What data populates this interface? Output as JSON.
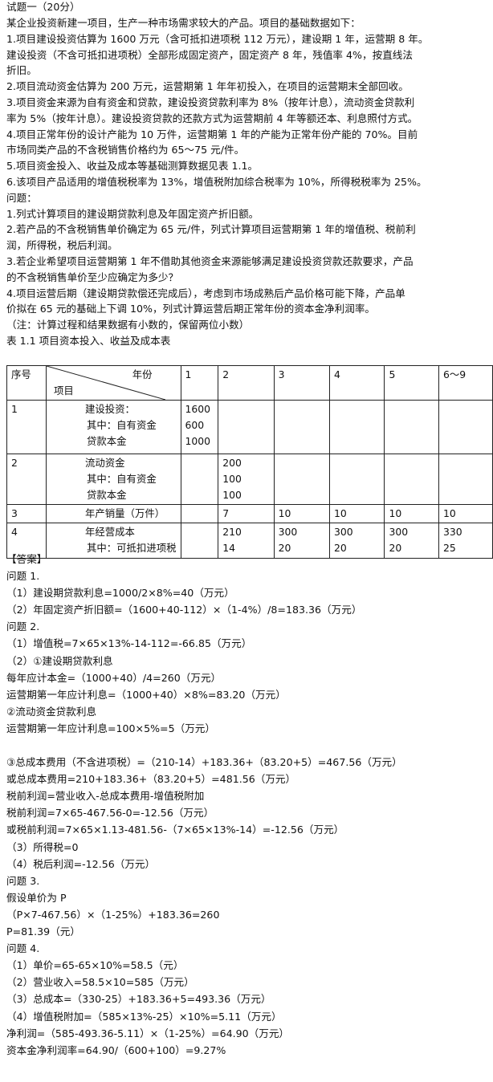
{
  "question": {
    "title": "试题一（20分）",
    "lines": [
      "某企业投资新建一项目，生产一种市场需求较大的产品。项目的基础数据如下：",
      "1.项目建设投资估算为 1600 万元（含可抵扣进项税 112 万元），建设期 1 年，运营期 8 年。",
      "建设投资（不含可抵扣进项税）全部形成固定资产，固定资产 8 年，残值率 4%，按直线法",
      "折旧。",
      "2.项目流动资金估算为 200 万元，运营期第 1 年年初投入，在项目的运营期末全部回收。",
      "3.项目资金来源为自有资金和贷款，建设投资贷款利率为 8%（按年计息），流动资金贷款利",
      "率为 5%（按年计息）。建设投资贷款的还款方式为运营期前 4 年等额还本、利息照付方式。",
      "4.项目正常年份的设计产能为 10 万件，运营期第 1 年的产能为正常年份产能的 70%。目前",
      "市场同类产品的不含税销售价格约为 65～75 元/件。",
      "5.项目资金投入、收益及成本等基础测算数据见表 1.1。",
      "6.该项目产品适用的增值税税率为 13%，增值税附加综合税率为 10%，所得税税率为 25%。",
      "问题：",
      "1.列式计算项目的建设期贷款利息及年固定资产折旧额。",
      "2.若产品的不含税销售单价确定为 65 元/件，列式计算项目运营期第 1 年的增值税、税前利",
      "润，所得税，税后利润。",
      "3.若企业希望项目运营期第 1 年不借助其他资金来源能够满足建设投资贷款还款要求，产品",
      "的不含税销售单价至少应确定为多少？",
      "4.项目运营后期（建设期贷款偿还完成后），考虑到市场成熟后产品价格可能下降，产品单",
      "价拟在 65 元的基础上下调 10%，列式计算运营后期正常年份的资本金净利润率。",
      "（注：计算过程和结果数据有小数的，保留两位小数）",
      "表 1.1  项目资本投入、收益及成本表"
    ]
  },
  "table": {
    "header": {
      "number": "序号",
      "year": "年份",
      "item": "项目",
      "years": [
        "1",
        "2",
        "3",
        "4",
        "5",
        "6～9"
      ]
    },
    "rows": [
      {
        "number": "1",
        "items": [
          "建设投资：",
          "其中：自有资金",
          "贷款本金"
        ],
        "cells": [
          [
            "1600",
            "600",
            "1000"
          ],
          [],
          [],
          [],
          [],
          []
        ]
      },
      {
        "number": "2",
        "items": [
          "流动资金",
          "其中：自有资金",
          "贷款本金"
        ],
        "cells": [
          [],
          [
            "200",
            "100",
            "100"
          ],
          [],
          [],
          [],
          []
        ]
      },
      {
        "number": "3",
        "items": [
          "年产销量（万件）"
        ],
        "cells": [
          [],
          [
            "7"
          ],
          [
            "10"
          ],
          [
            "10"
          ],
          [
            "10"
          ],
          [
            "10"
          ]
        ]
      },
      {
        "number": "4",
        "items": [
          "年经营成本",
          "其中：可抵扣进项税"
        ],
        "cells": [
          [],
          [
            "210",
            "14"
          ],
          [
            "300",
            "20"
          ],
          [
            "300",
            "20"
          ],
          [
            "300",
            "20"
          ],
          [
            "330",
            "25"
          ]
        ]
      }
    ]
  },
  "answer": {
    "title": "【答案】",
    "lines": [
      "问题 1.",
      "（1）建设期贷款利息=1000/2×8%=40（万元）",
      "（2）年固定资产折旧额=（1600+40-112）×（1-4%）/8=183.36（万元）",
      "问题 2.",
      "（1）增值税=7×65×13%-14-112=-66.85（万元）",
      "（2）①建设期贷款利息",
      "每年应计本金=（1000+40）/4=260（万元）",
      "运营期第一年应计利息=（1000+40）×8%=83.20（万元）",
      "②流动资金贷款利息",
      "运营期第一年应计利息=100×5%=5（万元）",
      "③总成本费用（不含进项税）=（210-14）+183.36+（83.20+5）=467.56（万元）",
      "或总成本费用=210+183.36+（83.20+5）=481.56（万元）",
      "税前利润=营业收入-总成本费用-增值税附加",
      "税前利润=7×65-467.56-0=-12.56（万元）",
      "或税前利润=7×65×1.13-481.56-（7×65×13%-14）=-12.56（万元）",
      "（3）所得税=0",
      "（4）税后利润=-12.56（万元）",
      "问题 3.",
      "假设单价为 P",
      "（P×7-467.56）×（1-25%）+183.36=260",
      "P=81.39（元）",
      "问题 4.",
      "（1）单价=65-65×10%=58.5（元）",
      "（2）营业收入=58.5×10=585（万元）",
      "（3）总成本=（330-25）+183.36+5=493.36（万元）",
      "（4）增值税附加=（585×13%-25）×10%=5.11（万元）",
      "净利润=（585-493.36-5.11）×（1-25%）=64.90（万元）",
      "资本金净利润率=64.90/（600+100）=9.27%"
    ]
  }
}
